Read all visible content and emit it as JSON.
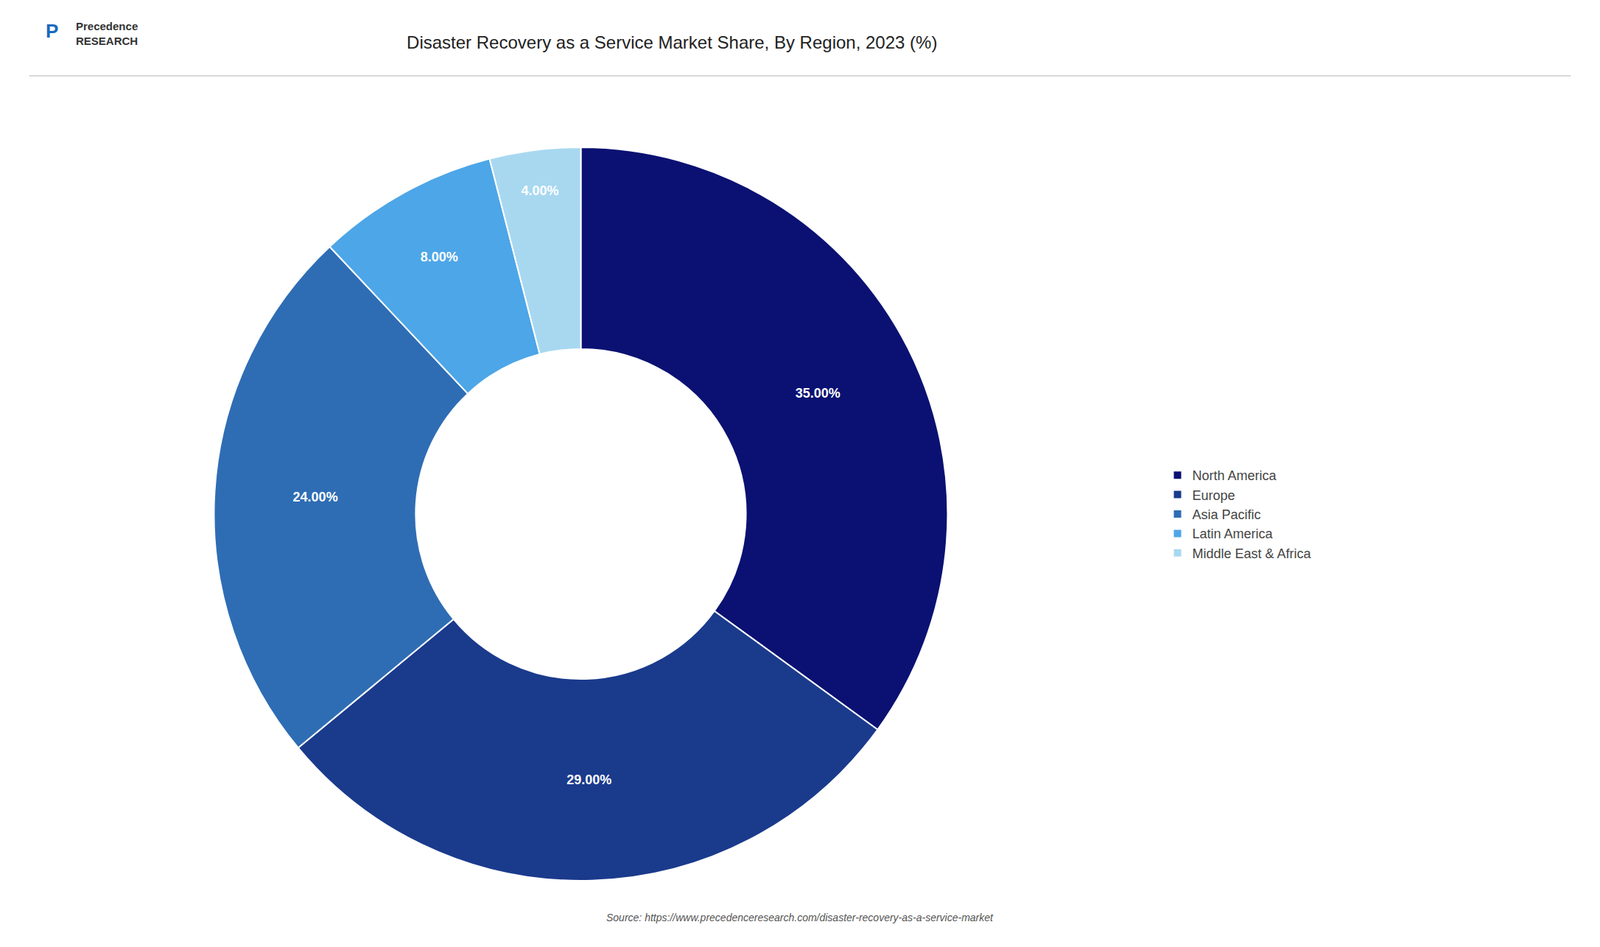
{
  "chart_data": {
    "type": "donut",
    "title": "Disaster Recovery as a Service Market Share, By Region, 2023 (%)",
    "categories": [
      "North America",
      "Europe",
      "Asia Pacific",
      "Latin America",
      "Middle East & Africa"
    ],
    "values": [
      35.0,
      29.0,
      24.0,
      8.0,
      4.0
    ],
    "value_labels": [
      "35.00%",
      "29.00%",
      "24.00%",
      "8.00%",
      "4.00%"
    ],
    "data_labels": true,
    "colors": [
      "#0a1172",
      "#1a3a8c",
      "#2e6db4",
      "#4da6e8",
      "#a8d8f0"
    ],
    "legend": "right",
    "annotations": [
      "P",
      "Precedence\nRESEARCH",
      "Source: https://www.precedenceresearch.com/disaster-recovery-as-a-service-market"
    ]
  }
}
